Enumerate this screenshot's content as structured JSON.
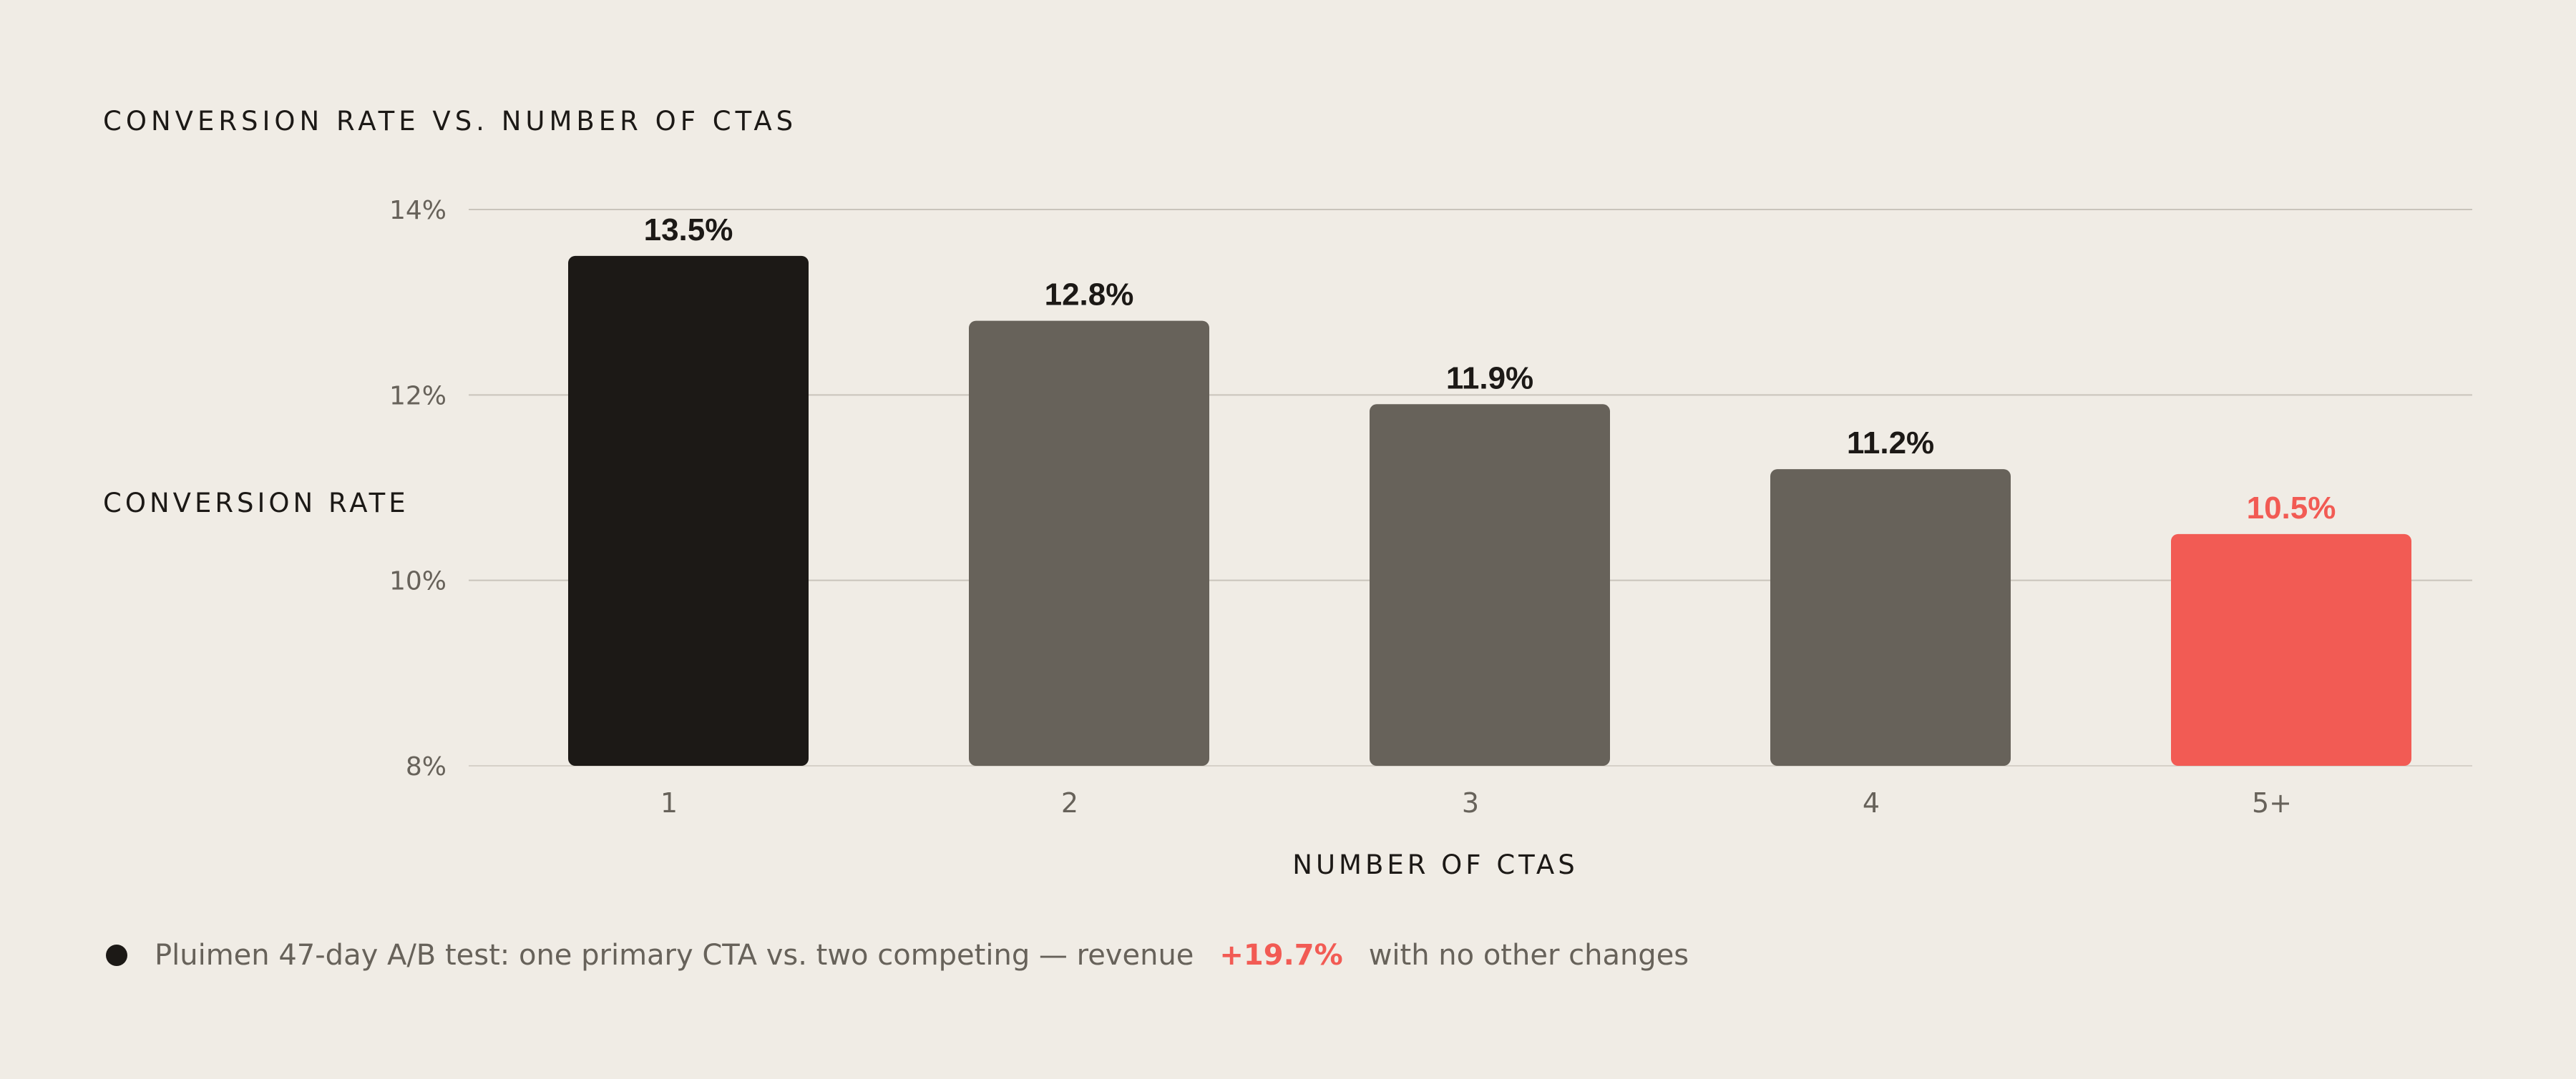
{
  "colors": {
    "background": "#f0ece5",
    "primary_bar": "#1c1916",
    "secondary_bar": "#67625a",
    "accent": "#f25b54",
    "gridline": "#c9c4bb",
    "tick_text": "#67625a",
    "label_text": "#1c1916"
  },
  "chart_data": {
    "type": "bar",
    "title": "CONVERSION RATE VS. NUMBER OF CTAS",
    "xlabel": "NUMBER OF CTAS",
    "ylabel": "CONVERSION RATE",
    "categories": [
      "1",
      "2",
      "3",
      "4",
      "5+"
    ],
    "values": [
      13.5,
      12.8,
      11.9,
      11.2,
      10.5
    ],
    "value_labels": [
      "13.5%",
      "12.8%",
      "11.9%",
      "11.2%",
      "10.5%"
    ],
    "bar_colors": [
      "#1c1916",
      "#67625a",
      "#67625a",
      "#67625a",
      "#f25b54"
    ],
    "label_colors": [
      "#1c1916",
      "#1c1916",
      "#1c1916",
      "#1c1916",
      "#f25b54"
    ],
    "ylim": [
      8,
      14
    ],
    "yticks": [
      8,
      10,
      12,
      14
    ],
    "ytick_labels": [
      "8%",
      "10%",
      "12%",
      "14%"
    ],
    "grid": true
  },
  "footnote": {
    "text_before": "Pluimen 47-day A/B test: one primary CTA vs. two competing — revenue",
    "highlight": "+19.7%",
    "text_after": "with no other changes"
  }
}
